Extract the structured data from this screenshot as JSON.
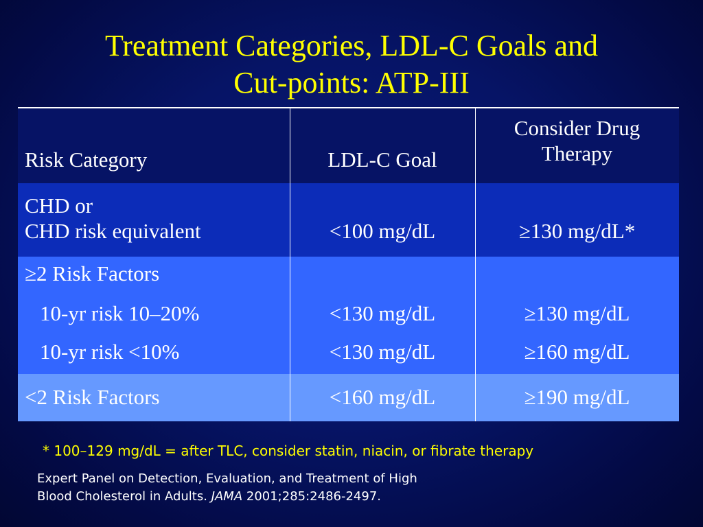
{
  "title": {
    "line1": "Treatment Categories, LDL-C Goals and",
    "line2": "Cut-points: ATP-III"
  },
  "table": {
    "headers": {
      "risk_category": "Risk Category",
      "ldl_goal": "LDL-C Goal",
      "drug_therapy_line1": "Consider Drug",
      "drug_therapy_line2": "Therapy"
    },
    "rows": [
      {
        "category_line1": "CHD or",
        "category_line2": "CHD risk equivalent",
        "goal": "<100 mg/dL",
        "therapy": "≥130 mg/dL*"
      },
      {
        "category": "≥2 Risk Factors",
        "sub": [
          {
            "label": "10-yr risk 10–20%",
            "goal": "<130 mg/dL",
            "therapy": "≥130 mg/dL"
          },
          {
            "label": "10-yr risk <10%",
            "goal": "<130 mg/dL",
            "therapy": "≥160 mg/dL"
          }
        ]
      },
      {
        "category": "<2 Risk Factors",
        "goal": "<160 mg/dL",
        "therapy": "≥190 mg/dL"
      }
    ]
  },
  "footnote": "* 100–129 mg/dL = after TLC, consider statin, niacin, or fibrate therapy",
  "reference": {
    "line1": "Expert Panel on Detection, Evaluation, and Treatment of High",
    "line2_prefix": "Blood Cholesterol in Adults. ",
    "journal": "JAMA",
    "line2_suffix": " 2001;285:2486-2497."
  },
  "colors": {
    "background": "#061466",
    "title": "#ffff00",
    "header_row": "#061365",
    "row_chd": "#0c2cb8",
    "row_2plus": "#3366ff",
    "row_less2": "#6699ff"
  }
}
